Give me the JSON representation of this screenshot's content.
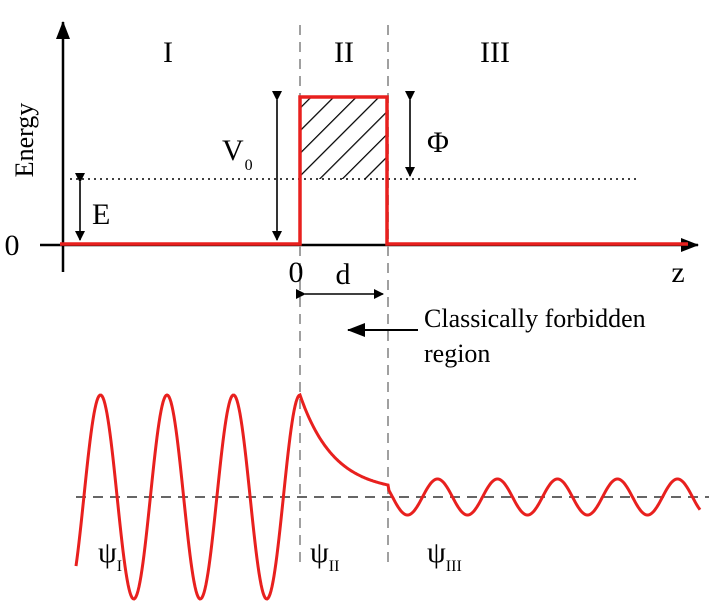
{
  "regions": {
    "r1": "I",
    "r2": "II",
    "r3": "III"
  },
  "axes": {
    "y_label": "Energy",
    "x_label": "z",
    "zero_y": "0",
    "zero_x": "0"
  },
  "labels": {
    "energy": "E",
    "barrier_height_main": "V",
    "barrier_height_sub": "0",
    "work_function": "Φ",
    "width": "d",
    "forbidden_line1": "Classically forbidden",
    "forbidden_line2": "region"
  },
  "wavefunctions": {
    "psi": "ψ",
    "sub1": "I",
    "sub2": "II",
    "sub3": "III"
  },
  "colors": {
    "potential": "#e8201e",
    "wave": "#e8201e",
    "guide": "#a0a0a0",
    "ink": "#000000"
  }
}
